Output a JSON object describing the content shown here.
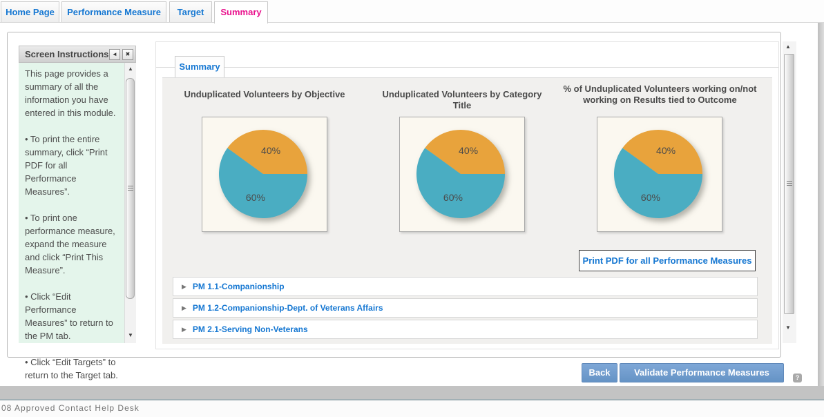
{
  "tabs": [
    {
      "label": "Home Page"
    },
    {
      "label": "Performance Measure"
    },
    {
      "label": "Target"
    },
    {
      "label": "Summary"
    }
  ],
  "instructions": {
    "title": "Screen Instructions",
    "paragraphs": [
      "This page provides a summary of all the information you have entered in this module.",
      "• To print the entire summary, click “Print PDF for all Performance Measures”.",
      "• To print one performance measure, expand the measure and click “Print This Measure”.",
      "• Click “Edit Performance Measures” to return to the PM tab.",
      "• Click “Edit Targets” to return to the Target tab."
    ]
  },
  "summary_section": {
    "tab_label": "Summary",
    "print_button_label": "Print PDF for all Performance Measures"
  },
  "chart_data": [
    {
      "type": "pie",
      "title": "Unduplicated Volunteers by Objective",
      "slices": [
        {
          "label": "40%",
          "value": 40,
          "color": "#E8A33C"
        },
        {
          "label": "60%",
          "value": 60,
          "color": "#4AADC2"
        }
      ],
      "start_angle_deg": 0,
      "direction": "counterclockwise",
      "legend": "none"
    },
    {
      "type": "pie",
      "title": "Unduplicated Volunteers by Category Title",
      "slices": [
        {
          "label": "40%",
          "value": 40,
          "color": "#E8A33C"
        },
        {
          "label": "60%",
          "value": 60,
          "color": "#4AADC2"
        }
      ],
      "start_angle_deg": 0,
      "direction": "counterclockwise",
      "legend": "none"
    },
    {
      "type": "pie",
      "title": "% of Unduplicated Volunteers working on/not working on Results tied to Outcome",
      "slices": [
        {
          "label": "40%",
          "value": 40,
          "color": "#E8A33C"
        },
        {
          "label": "60%",
          "value": 60,
          "color": "#4AADC2"
        }
      ],
      "start_angle_deg": 0,
      "direction": "counterclockwise",
      "legend": "none"
    }
  ],
  "measures": [
    {
      "label": "PM 1.1-Companionship"
    },
    {
      "label": "PM 1.2-Companionship-Dept. of Veterans Affairs"
    },
    {
      "label": "PM 2.1-Serving Non-Veterans"
    }
  ],
  "footer": {
    "back_label": "Back",
    "validate_label": "Validate Performance Measures"
  },
  "status_bar": {
    "text": "08 Approved Contact Help Desk"
  },
  "icons": {
    "collapse_left": "◄",
    "close": "✖",
    "scroll_up": "▲",
    "scroll_down": "▼",
    "expand": "▶",
    "help": "?"
  },
  "colors": {
    "tab_link_blue": "#1577d2",
    "active_tab_pink": "#e9118c",
    "pie_orange": "#E8A33C",
    "pie_teal": "#4AADC2",
    "action_button_blue": "#6593c5",
    "instructions_bg_green": "#e4f5eb"
  }
}
